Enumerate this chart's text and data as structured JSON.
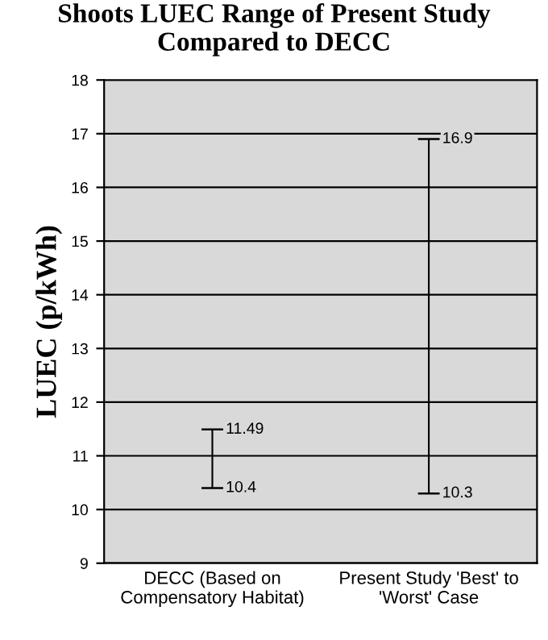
{
  "chart_data": {
    "type": "bar",
    "title": "Shoots LUEC Range of Present Study Compared to DECC",
    "ylabel": "LUEC (p/kWh)",
    "categories": [
      "DECC (Based on\nCompensatory Habitat)",
      "Present Study 'Best' to\n'Worst' Case"
    ],
    "base": [
      10.4,
      10.3
    ],
    "values": [
      1.09,
      6.6
    ],
    "color": "#000000",
    "ylim": [
      9,
      18
    ],
    "yticks": [
      9,
      10,
      11,
      12,
      13,
      14,
      15,
      16,
      17,
      18
    ],
    "grid": "y",
    "annotations": [
      {
        "text": "11.49",
        "x": "DECC (Based on\nCompensatory Habitat)",
        "y": 11.49
      },
      {
        "text": "10.4",
        "x": "DECC (Based on\nCompensatory Habitat)",
        "y": 10.4
      },
      {
        "text": "16.9",
        "x": "Present Study 'Best' to\n'Worst' Case",
        "y": 16.9
      },
      {
        "text": "10.3",
        "x": "Present Study 'Best' to\n'Worst' Case",
        "y": 10.3
      }
    ]
  }
}
